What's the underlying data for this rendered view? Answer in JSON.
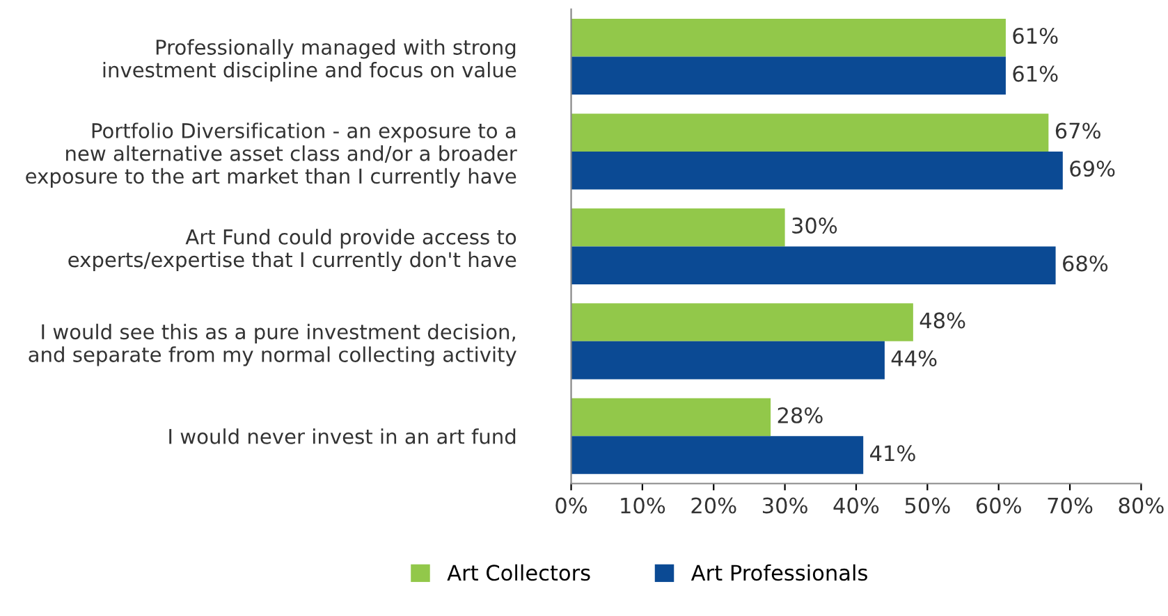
{
  "chart_data": {
    "type": "bar",
    "orientation": "horizontal",
    "categories": [
      "Professionally managed with strong\ninvestment discipline and focus on value",
      "Portfolio Diversification - an exposure to a\nnew alternative asset class and/or a broader\nexposure to the art market than I currently have",
      "Art Fund could provide access to\nexperts/expertise that I currently don't have",
      "I would see this as a pure investment decision,\nand separate from my normal collecting activity",
      "I would never invest in an art fund"
    ],
    "series": [
      {
        "name": "Art Collectors",
        "color": "#92c84a",
        "values": [
          61,
          67,
          30,
          48,
          28
        ],
        "value_labels": [
          "61%",
          "67%",
          "30%",
          "48%",
          "28%"
        ]
      },
      {
        "name": "Art Professionals",
        "color": "#0b4a94",
        "values": [
          61,
          69,
          68,
          44,
          41
        ],
        "value_labels": [
          "61%",
          "69%",
          "68%",
          "44%",
          "41%"
        ]
      }
    ],
    "xlim": [
      0,
      80
    ],
    "xticks": [
      {
        "value": 0,
        "label": "0%"
      },
      {
        "value": 10,
        "label": "10%"
      },
      {
        "value": 20,
        "label": "20%"
      },
      {
        "value": 30,
        "label": "30%"
      },
      {
        "value": 40,
        "label": "40%"
      },
      {
        "value": 50,
        "label": "50%"
      },
      {
        "value": 60,
        "label": "60%"
      },
      {
        "value": 70,
        "label": "70%"
      },
      {
        "value": 80,
        "label": "80%"
      }
    ],
    "grid": false,
    "legend": "bottom"
  }
}
